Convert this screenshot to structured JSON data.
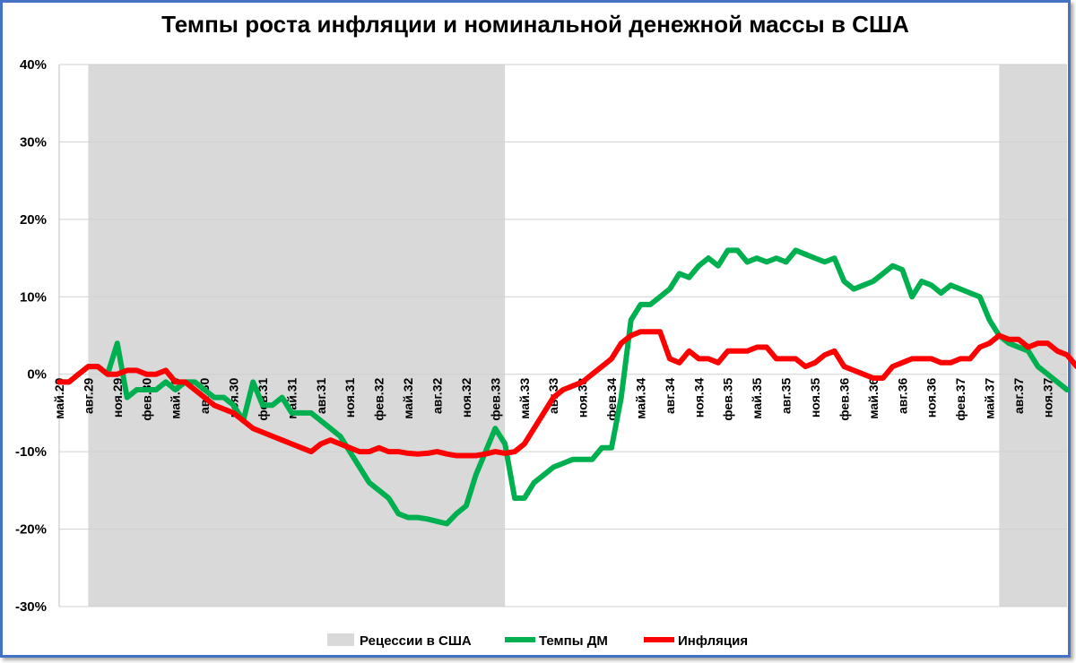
{
  "chart_data": {
    "type": "line",
    "title": "Темпы роста инфляции и номинальной денежной массы в США",
    "ylim": [
      -30,
      40
    ],
    "yticks": [
      "40%",
      "30%",
      "20%",
      "10%",
      "0%",
      "-10%",
      "-20%",
      "-30%"
    ],
    "ytick_values": [
      40,
      30,
      20,
      10,
      0,
      -10,
      -20,
      -30
    ],
    "x_labels": [
      "май.29",
      "авг.29",
      "ноя.29",
      "фев.30",
      "май.30",
      "авг.30",
      "ноя.30",
      "фев.31",
      "май.31",
      "авг.31",
      "ноя.31",
      "фев.32",
      "май.32",
      "авг.32",
      "ноя.32",
      "фев.33",
      "май.33",
      "авг.33",
      "ноя.33",
      "фев.34",
      "май.34",
      "авг.34",
      "ноя.34",
      "фев.35",
      "май.35",
      "авг.35",
      "ноя.35",
      "фев.36",
      "май.36",
      "авг.36",
      "ноя.36",
      "фев.37",
      "май.37",
      "авг.37",
      "ноя.37"
    ],
    "legend_position": "bottom",
    "grid": true,
    "recessions": {
      "name": "Рецессии в США",
      "color": "#d9d9d9",
      "periods": [
        [
          "авг.29",
          "мар.33"
        ],
        [
          "июн.37",
          "дек.37"
        ]
      ],
      "month_ranges": [
        [
          3,
          46
        ],
        [
          97,
          104
        ]
      ]
    },
    "series": [
      {
        "name": "Темпы ДМ",
        "color": "#00b050",
        "values": [
          -1,
          -1,
          0,
          1,
          1,
          0,
          4,
          -3,
          -2,
          -2,
          -2,
          -1,
          -2,
          -1,
          -1,
          -2,
          -3,
          -3,
          -4,
          -6,
          -1,
          -4,
          -4,
          -3,
          -5,
          -5,
          -5,
          -6,
          -7,
          -8,
          -10,
          -12,
          -14,
          -15,
          -16,
          -18,
          -18.5,
          -18.5,
          -18.7,
          -19,
          -19.3,
          -18,
          -17,
          -13,
          -10,
          -7,
          -9,
          -16,
          -16,
          -14,
          -13,
          -12,
          -11.5,
          -11,
          -11,
          -11,
          -9.5,
          -9.5,
          -3,
          7,
          9,
          9,
          10,
          11,
          13,
          12.5,
          14,
          15,
          14,
          16,
          16,
          14.5,
          15,
          14.5,
          15,
          14.5,
          16,
          15.5,
          15,
          14.5,
          15,
          12,
          11,
          11.5,
          12,
          13,
          14,
          13.5,
          10,
          12,
          11.5,
          10.5,
          11.5,
          11,
          10.5,
          10,
          7,
          5,
          4,
          3.5,
          3,
          1,
          0,
          -1,
          -2
        ]
      },
      {
        "name": "Инфляция",
        "color": "#ff0000",
        "values": [
          -1,
          -1,
          0,
          1,
          1,
          0,
          0,
          0.5,
          0.5,
          0,
          0,
          0.5,
          -1,
          -1,
          -2,
          -3,
          -4,
          -4.5,
          -5,
          -6,
          -7,
          -7.5,
          -8,
          -8.5,
          -9,
          -9.5,
          -10,
          -9,
          -8.5,
          -9,
          -9.5,
          -10,
          -10,
          -9.5,
          -10,
          -10,
          -10.2,
          -10.3,
          -10.2,
          -10,
          -10.3,
          -10.5,
          -10.5,
          -10.5,
          -10.3,
          -10,
          -10.2,
          -10,
          -9,
          -7,
          -5,
          -3,
          -2,
          -1.5,
          -1,
          0,
          1,
          2,
          4,
          5,
          5.5,
          5.5,
          5.5,
          2,
          1.5,
          3,
          2,
          2,
          1.5,
          3,
          3,
          3,
          3.5,
          3.5,
          2,
          2,
          2,
          1,
          1.5,
          2.5,
          3,
          1,
          0.5,
          0,
          -0.5,
          -0.5,
          1,
          1.5,
          2,
          2,
          2,
          1.5,
          1.5,
          2,
          2,
          3.5,
          4,
          5,
          4.5,
          4.5,
          3.5,
          4,
          4,
          3,
          2.5,
          1
        ]
      }
    ]
  },
  "legend": {
    "recession_label": "Рецессии в США",
    "dm_label": "Темпы ДМ",
    "inflation_label": "Инфляция"
  }
}
